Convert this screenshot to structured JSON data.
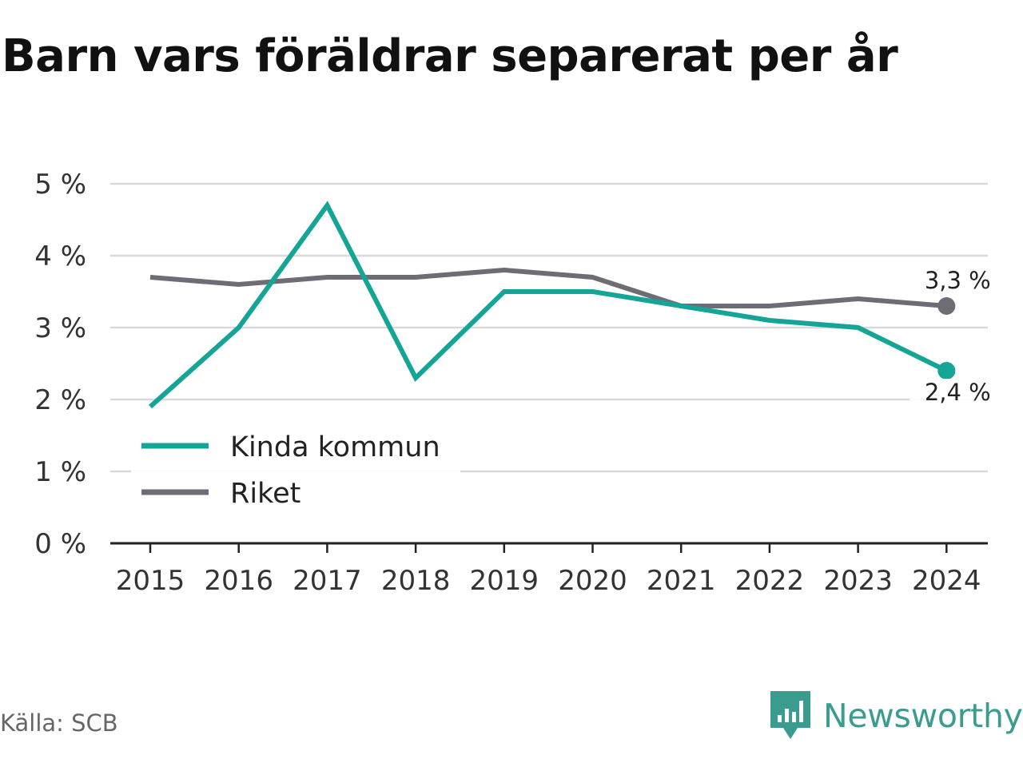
{
  "title": "Barn vars föräldrar separerat per år",
  "source": "Källa: SCB",
  "brand": {
    "name": "Newsworthy",
    "icon": "newsworthy-logo-icon",
    "color": "#3a9c8f"
  },
  "chart_data": {
    "type": "line",
    "title": "Barn vars föräldrar separerat per år",
    "xlabel": "",
    "ylabel": "",
    "categories": [
      "2015",
      "2016",
      "2017",
      "2018",
      "2019",
      "2020",
      "2021",
      "2022",
      "2023",
      "2024"
    ],
    "ylim": [
      0,
      5
    ],
    "yticks": [
      0,
      1,
      2,
      3,
      4,
      5
    ],
    "ytick_labels": [
      "0 %",
      "1 %",
      "2 %",
      "3 %",
      "4 %",
      "5 %"
    ],
    "grid": true,
    "legend_position": "bottom-left",
    "series": [
      {
        "name": "Kinda kommun",
        "color": "#14a596",
        "values": [
          1.9,
          3.0,
          4.7,
          2.3,
          3.5,
          3.5,
          3.3,
          3.1,
          3.0,
          2.4
        ],
        "end_label": "2,4 %"
      },
      {
        "name": "Riket",
        "color": "#6e6d75",
        "values": [
          3.7,
          3.6,
          3.7,
          3.7,
          3.8,
          3.7,
          3.3,
          3.3,
          3.4,
          3.3
        ],
        "end_label": "3,3 %"
      }
    ]
  }
}
